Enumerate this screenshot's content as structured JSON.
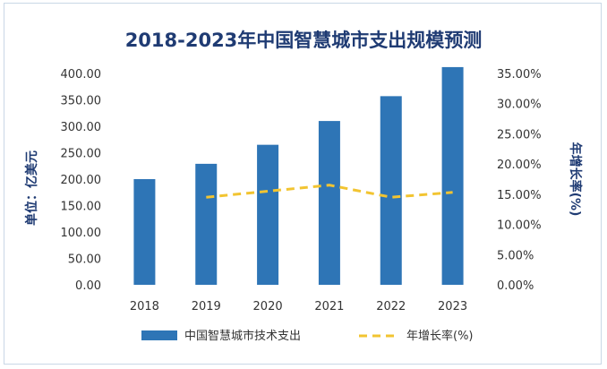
{
  "chart_data": {
    "type": "bar",
    "title": "2018-2023年中国智慧城市支出规模预测",
    "categories": [
      "2018",
      "2019",
      "2020",
      "2021",
      "2022",
      "2023"
    ],
    "ylabel": "单位：亿美元",
    "y2label": "年增长率(%)",
    "ylim": [
      0,
      400
    ],
    "y2lim": [
      0,
      0.35
    ],
    "yticks": [
      "0.00",
      "50.00",
      "100.00",
      "150.00",
      "200.00",
      "250.00",
      "300.00",
      "350.00",
      "400.00"
    ],
    "y2ticks": [
      "0.00%",
      "5.00%",
      "10.00%",
      "15.00%",
      "20.00%",
      "25.00%",
      "30.00%",
      "35.00%"
    ],
    "grid": false,
    "legend": "bottom",
    "series": [
      {
        "name": "中国智慧城市技术支出",
        "type": "bar",
        "axis": "left",
        "values": [
          200,
          229,
          265,
          310,
          357,
          412
        ],
        "color": "#2e75b6"
      },
      {
        "name": "年增长率(%)",
        "type": "line",
        "style": "dashed",
        "axis": "right",
        "values": [
          null,
          0.145,
          0.155,
          0.165,
          0.145,
          0.153
        ],
        "color": "#f2c431"
      }
    ]
  }
}
